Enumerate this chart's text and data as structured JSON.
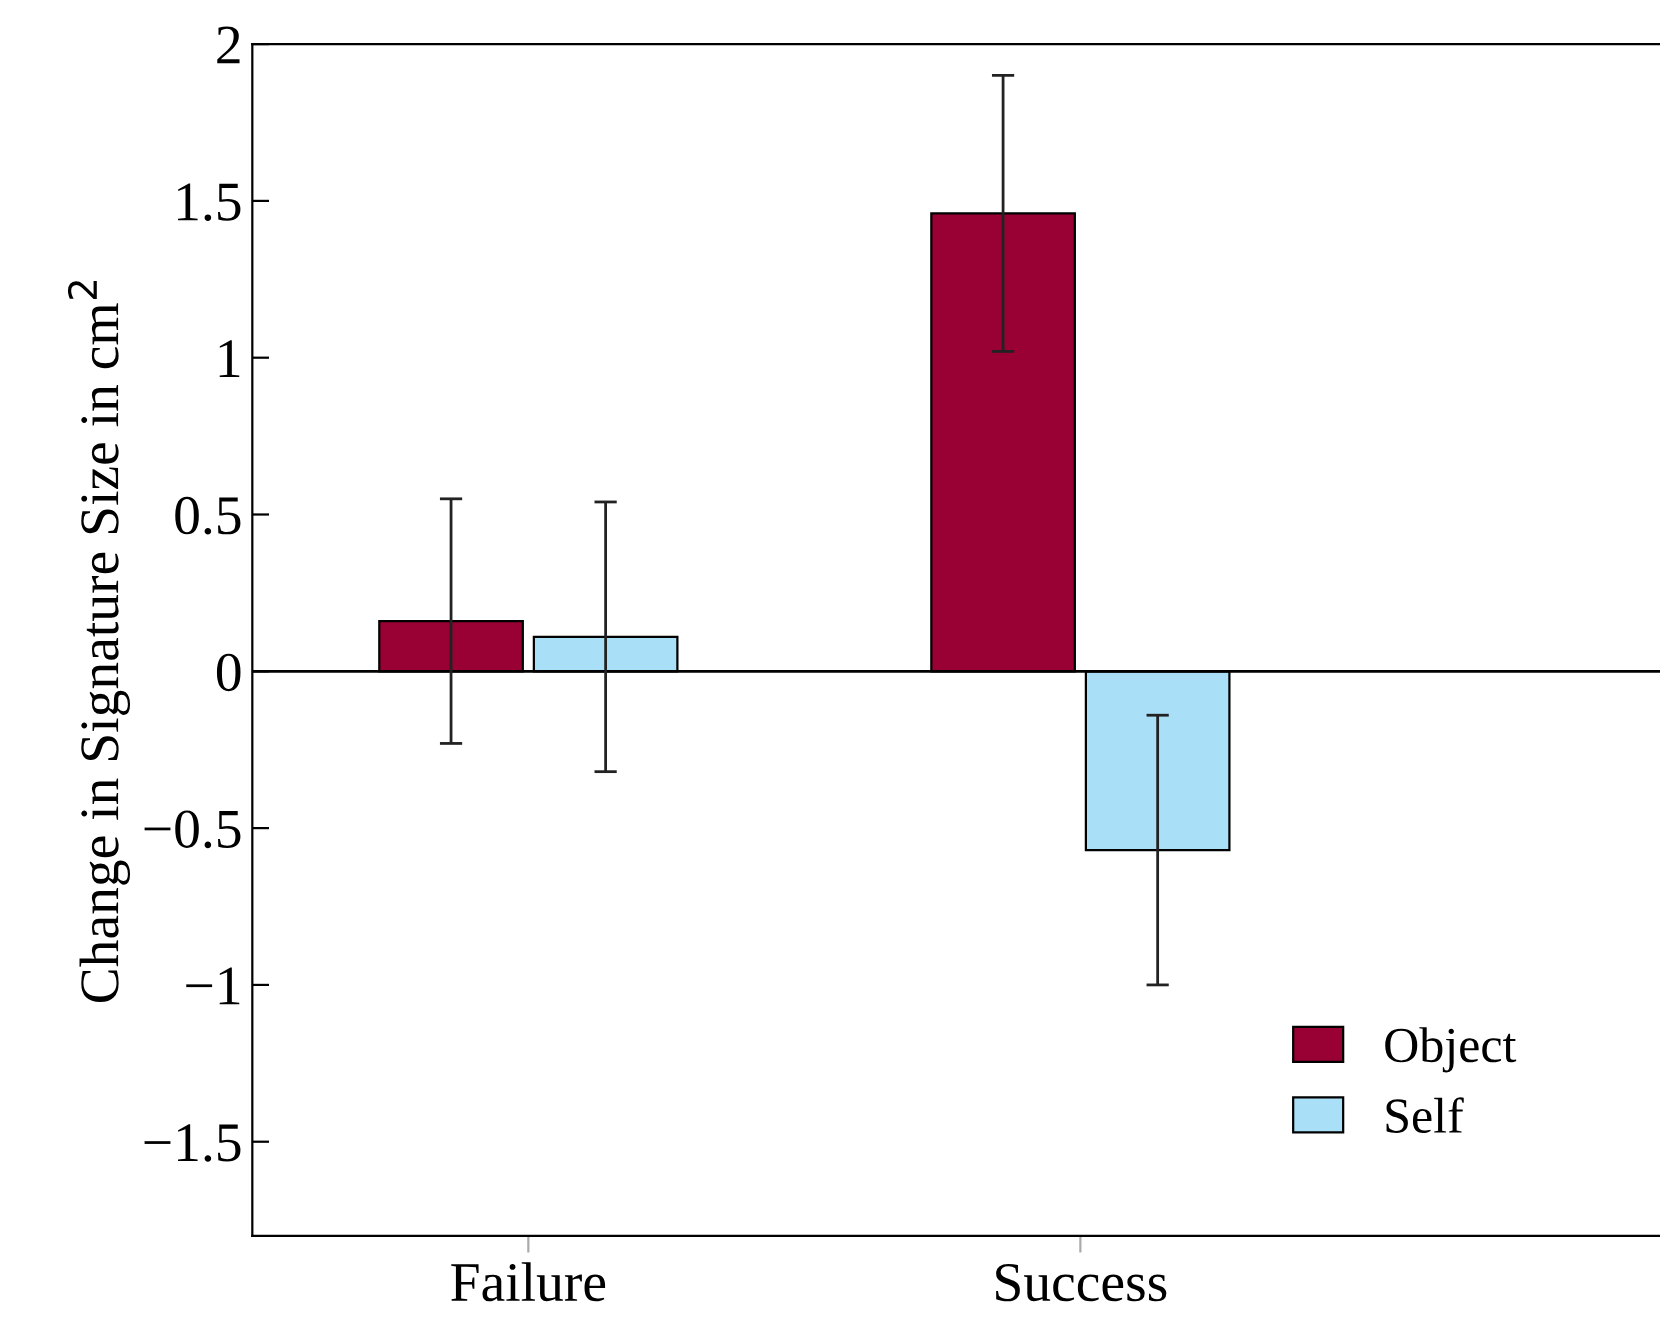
{
  "chart_data": {
    "type": "bar",
    "ylabel": "Change in Signature Size in cm$^{2}$",
    "categories": [
      "Failure",
      "Success"
    ],
    "series": [
      {
        "name": "Object",
        "color": "#990033",
        "values": [
          0.16,
          1.46
        ],
        "errors": [
          0.39,
          0.44
        ]
      },
      {
        "name": "Self",
        "color": "#aadff8",
        "values": [
          0.11,
          -0.57
        ],
        "errors": [
          0.43,
          0.43
        ]
      }
    ],
    "ylim": [
      -1.8,
      2
    ],
    "yticks": [
      {
        "value": -1.5,
        "label": "−1.5"
      },
      {
        "value": -1,
        "label": "−1"
      },
      {
        "value": -0.5,
        "label": "−0.5"
      },
      0,
      0.5,
      1,
      1.5,
      2
    ],
    "ref_lines": [
      {
        "axis": "y",
        "value": 0,
        "color": "#000000"
      }
    ],
    "legend": "bottom right",
    "grid": false
  }
}
